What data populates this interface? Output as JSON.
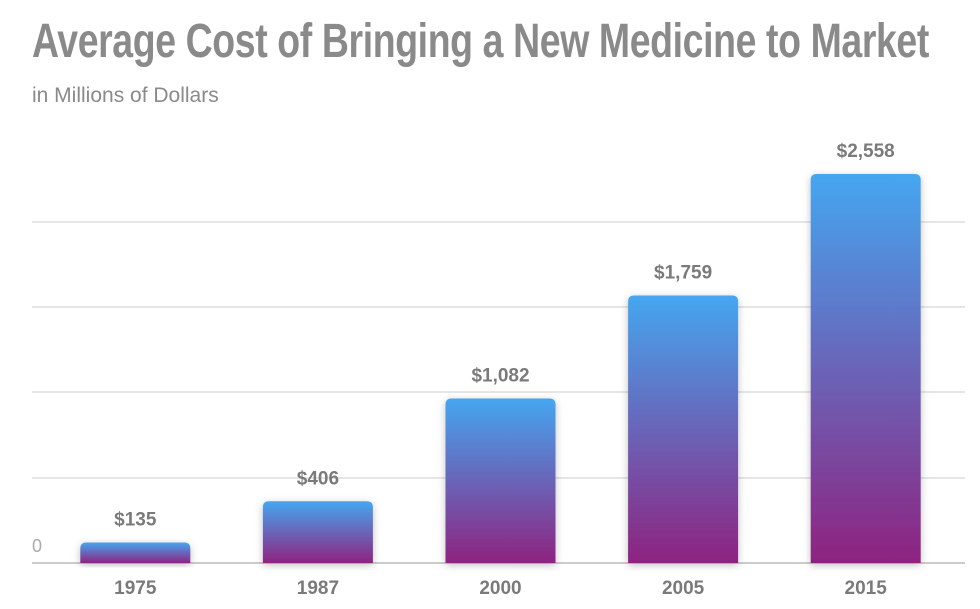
{
  "chart_data": {
    "type": "bar",
    "title": "Average Cost of Bringing a New Medicine to Market",
    "subtitle": "in Millions of Dollars",
    "categories": [
      "1975",
      "1987",
      "2000",
      "2005",
      "2015"
    ],
    "values": [
      135,
      406,
      1082,
      1759,
      2558
    ],
    "data_labels": [
      "$135",
      "$406",
      "$1,082",
      "$1,759",
      "$2,558"
    ],
    "y_tick_labels": [
      "0"
    ],
    "ylim": [
      0,
      2800
    ],
    "grid": true,
    "legend": "none",
    "colors": {
      "gradient_top": "#45a6f0",
      "gradient_bottom": "#8e2380",
      "text": "#7a7a7a",
      "grid": "#dddddd"
    }
  }
}
